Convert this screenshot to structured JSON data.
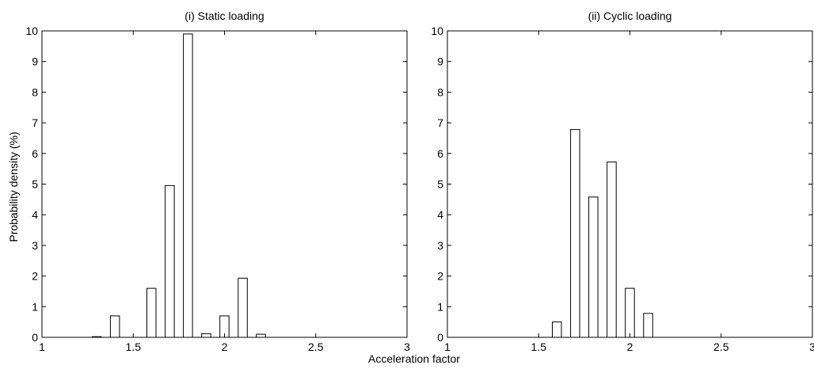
{
  "chart_data": [
    {
      "type": "bar",
      "title": "(i) Static loading",
      "xlabel": "",
      "ylabel": "Probability density (%)",
      "xlim": [
        1,
        3
      ],
      "ylim": [
        0,
        10
      ],
      "xticks": [
        "1",
        "1.5",
        "2",
        "2.5",
        "3"
      ],
      "yticks": [
        "0",
        "1",
        "2",
        "3",
        "4",
        "5",
        "6",
        "7",
        "8",
        "9",
        "10"
      ],
      "bin_width": 0.05,
      "bars": [
        {
          "x": 1.3,
          "value": 0.02
        },
        {
          "x": 1.4,
          "value": 0.7
        },
        {
          "x": 1.6,
          "value": 1.6
        },
        {
          "x": 1.7,
          "value": 4.95
        },
        {
          "x": 1.8,
          "value": 9.9
        },
        {
          "x": 1.9,
          "value": 0.12
        },
        {
          "x": 2.0,
          "value": 0.7
        },
        {
          "x": 2.1,
          "value": 1.93
        },
        {
          "x": 2.2,
          "value": 0.1
        }
      ]
    },
    {
      "type": "bar",
      "title": "(ii) Cyclic loading",
      "xlabel": "",
      "ylabel": "",
      "xlim": [
        1,
        3
      ],
      "ylim": [
        0,
        10
      ],
      "xticks": [
        "1",
        "1.5",
        "2",
        "2.5",
        "3"
      ],
      "yticks": [
        "0",
        "1",
        "2",
        "3",
        "4",
        "5",
        "6",
        "7",
        "8",
        "9",
        "10"
      ],
      "bin_width": 0.05,
      "bars": [
        {
          "x": 1.6,
          "value": 0.5
        },
        {
          "x": 1.7,
          "value": 6.78
        },
        {
          "x": 1.8,
          "value": 4.58
        },
        {
          "x": 1.9,
          "value": 5.72
        },
        {
          "x": 2.0,
          "value": 1.6
        },
        {
          "x": 2.1,
          "value": 0.78
        }
      ]
    }
  ],
  "shared_xlabel": "Acceleration factor"
}
